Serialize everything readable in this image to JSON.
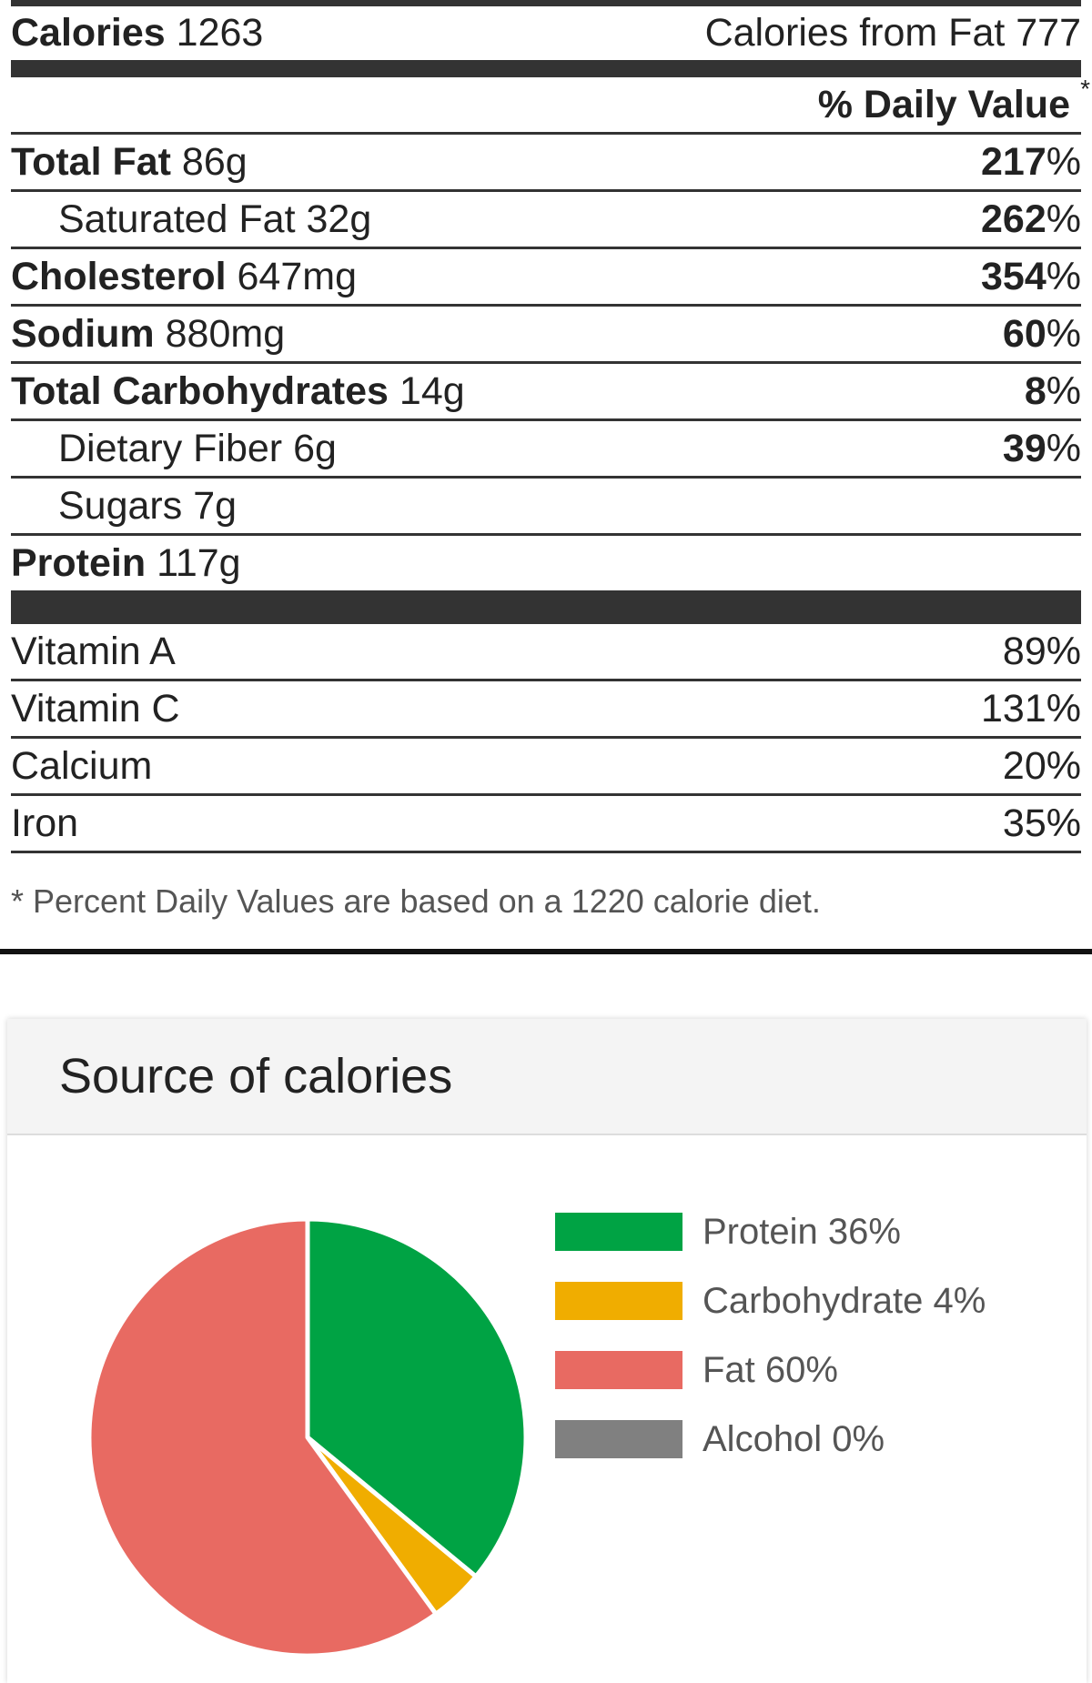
{
  "label": {
    "calories_label": "Calories",
    "calories_value": "1263",
    "calories_from_fat": "Calories from Fat 777",
    "daily_value_header": "% Daily Value",
    "daily_value_star": "*",
    "nutrients": [
      {
        "name": "Total Fat",
        "amount": "86g",
        "dv_num": "217",
        "dv_pct": "%"
      },
      {
        "name": "Saturated Fat 32g",
        "amount": "",
        "dv_num": "262",
        "dv_pct": "%"
      },
      {
        "name": "Cholesterol",
        "amount": "647mg",
        "dv_num": "354",
        "dv_pct": "%"
      },
      {
        "name": "Sodium",
        "amount": "880mg",
        "dv_num": "60",
        "dv_pct": "%"
      },
      {
        "name": "Total Carbohydrates",
        "amount": "14g",
        "dv_num": "8",
        "dv_pct": "%"
      },
      {
        "name": "Dietary Fiber 6g",
        "amount": "",
        "dv_num": "39",
        "dv_pct": "%"
      },
      {
        "name": "Sugars 7g",
        "amount": "",
        "dv_num": "",
        "dv_pct": ""
      },
      {
        "name": "Protein",
        "amount": "117g",
        "dv_num": "",
        "dv_pct": ""
      }
    ],
    "vitamins": [
      {
        "name": "Vitamin A",
        "value": "89%"
      },
      {
        "name": "Vitamin C",
        "value": "131%"
      },
      {
        "name": "Calcium",
        "value": "20%"
      },
      {
        "name": "Iron",
        "value": "35%"
      }
    ],
    "footnote": "* Percent Daily Values are based on a 1220 calorie diet."
  },
  "card": {
    "title": "Source of calories"
  },
  "chart_data": {
    "type": "pie",
    "slices": [
      {
        "label": "Protein 36%",
        "name": "Protein",
        "value": 36,
        "color": "#00a344"
      },
      {
        "label": "Carbohydrate 4%",
        "name": "Carbohydrate",
        "value": 4,
        "color": "#f0ad00"
      },
      {
        "label": "Fat 60%",
        "name": "Fat",
        "value": 60,
        "color": "#e86a62"
      },
      {
        "label": "Alcohol 0%",
        "name": "Alcohol",
        "value": 0,
        "color": "#808080"
      }
    ],
    "legend_position": "right"
  }
}
